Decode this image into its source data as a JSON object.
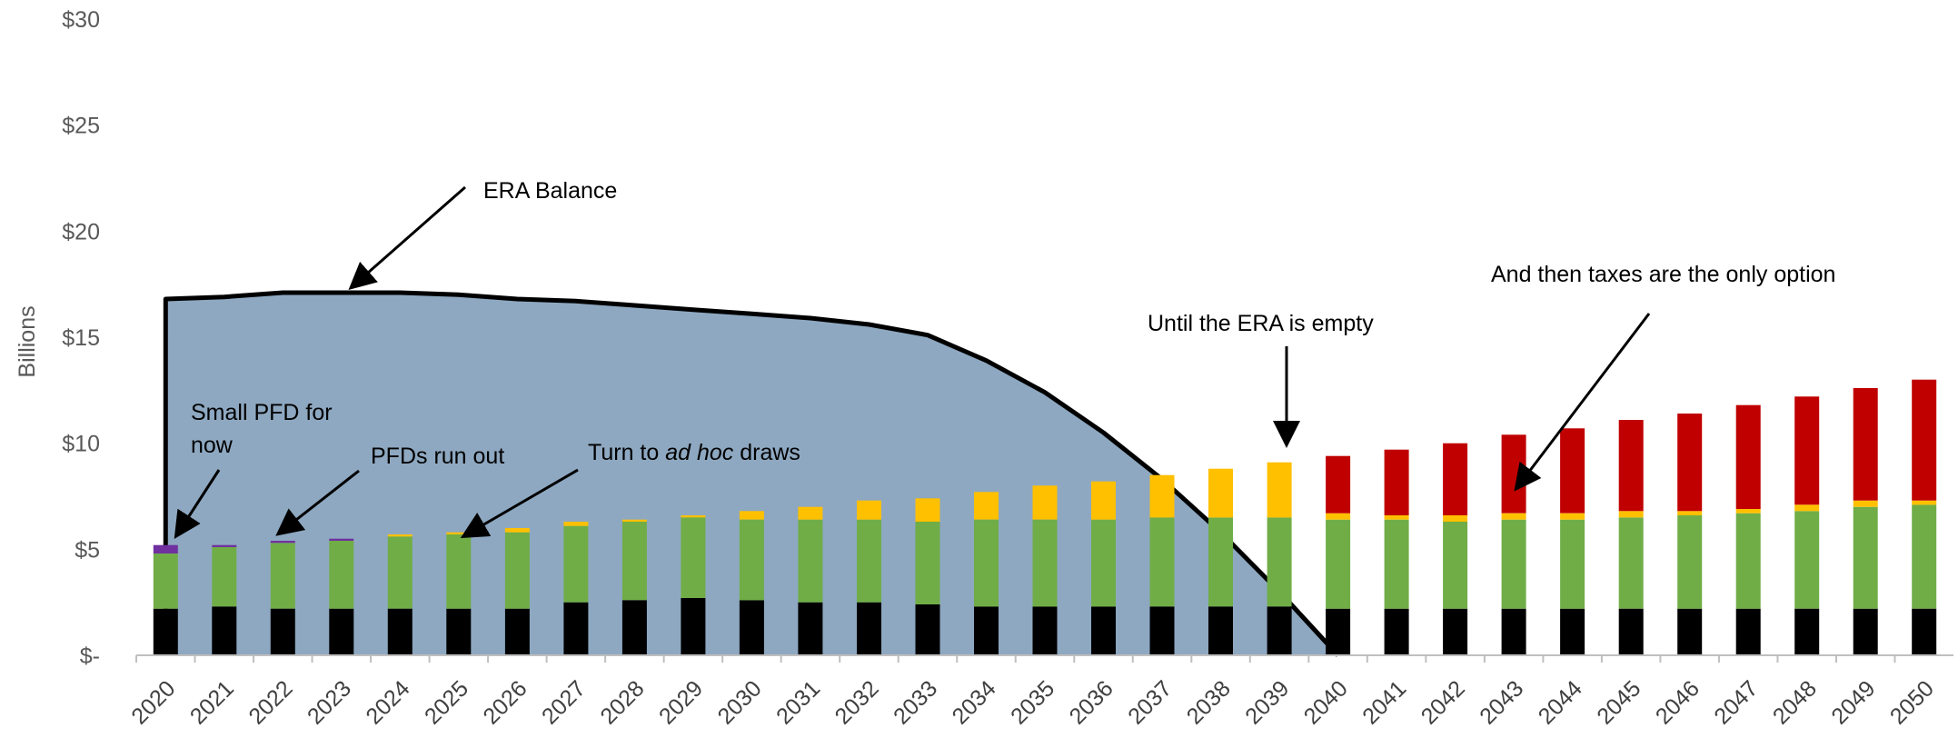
{
  "chart_data": {
    "type": "bar",
    "stacked": true,
    "ylabel": "Billions",
    "ylim": [
      0,
      30
    ],
    "yticks": [
      "$-",
      "$5",
      "$10",
      "$15",
      "$20",
      "$25",
      "$30"
    ],
    "ytick_values": [
      0,
      5,
      10,
      15,
      20,
      25,
      30
    ],
    "grid": false,
    "legend": "none",
    "categories": [
      "2020",
      "2021",
      "2022",
      "2023",
      "2024",
      "2025",
      "2026",
      "2027",
      "2028",
      "2029",
      "2030",
      "2031",
      "2032",
      "2033",
      "2034",
      "2035",
      "2036",
      "2037",
      "2038",
      "2039",
      "2040",
      "2041",
      "2042",
      "2043",
      "2044",
      "2045",
      "2046",
      "2047",
      "2048",
      "2049",
      "2050"
    ],
    "series": [
      {
        "color": "#000000",
        "values": [
          2.2,
          2.3,
          2.2,
          2.2,
          2.2,
          2.2,
          2.2,
          2.5,
          2.6,
          2.7,
          2.6,
          2.5,
          2.5,
          2.4,
          2.3,
          2.3,
          2.3,
          2.3,
          2.3,
          2.3,
          2.2,
          2.2,
          2.2,
          2.2,
          2.2,
          2.2,
          2.2,
          2.2,
          2.2,
          2.2,
          2.2
        ]
      },
      {
        "color": "#70AD47",
        "values": [
          2.6,
          2.8,
          3.1,
          3.2,
          3.4,
          3.5,
          3.6,
          3.6,
          3.7,
          3.8,
          3.8,
          3.9,
          3.9,
          3.9,
          4.1,
          4.1,
          4.1,
          4.2,
          4.2,
          4.2,
          4.2,
          4.2,
          4.1,
          4.2,
          4.2,
          4.3,
          4.4,
          4.5,
          4.6,
          4.8,
          4.9
        ]
      },
      {
        "color": "#7030A0",
        "values": [
          0.4,
          0.1,
          0.1,
          0.1,
          0,
          0,
          0,
          0,
          0,
          0,
          0,
          0,
          0,
          0,
          0,
          0,
          0,
          0,
          0,
          0,
          0,
          0,
          0,
          0,
          0,
          0,
          0,
          0,
          0,
          0,
          0
        ]
      },
      {
        "color": "#FFC000",
        "values": [
          0,
          0,
          0,
          0,
          0.1,
          0.1,
          0.2,
          0.2,
          0.1,
          0.1,
          0.4,
          0.6,
          0.9,
          1.1,
          1.3,
          1.6,
          1.8,
          2.0,
          2.3,
          2.6,
          0.3,
          0.2,
          0.3,
          0.3,
          0.3,
          0.3,
          0.2,
          0.2,
          0.3,
          0.3,
          0.2
        ]
      },
      {
        "color": "#C00000",
        "values": [
          0,
          0,
          0,
          0,
          0,
          0,
          0,
          0,
          0,
          0,
          0,
          0,
          0,
          0,
          0,
          0,
          0,
          0,
          0,
          0,
          2.7,
          3.1,
          3.4,
          3.7,
          4.0,
          4.3,
          4.6,
          4.9,
          5.1,
          5.3,
          5.7
        ]
      }
    ],
    "area": {
      "name": "ERA Balance",
      "color": "#8EA8C1",
      "line_color": "#000000",
      "x": [
        "2020",
        "2021",
        "2022",
        "2023",
        "2024",
        "2025",
        "2026",
        "2027",
        "2028",
        "2029",
        "2030",
        "2031",
        "2032",
        "2033",
        "2034",
        "2035",
        "2036",
        "2037",
        "2038",
        "2039",
        "2040"
      ],
      "values": [
        16.8,
        16.9,
        17.1,
        17.1,
        17.1,
        17.0,
        16.8,
        16.7,
        16.5,
        16.3,
        16.1,
        15.9,
        15.6,
        15.1,
        13.9,
        12.4,
        10.5,
        8.3,
        5.8,
        3.0,
        0
      ]
    },
    "annotations": [
      {
        "text": "ERA Balance"
      },
      {
        "text": "Small PFD for"
      },
      {
        "text": "now"
      },
      {
        "text": "PFDs run out"
      },
      {
        "text_before": "Turn to ",
        "text_italic": "ad hoc",
        "text_after": " draws"
      },
      {
        "text": "Until the ERA is empty"
      },
      {
        "text": "And then taxes are the only option"
      }
    ]
  }
}
